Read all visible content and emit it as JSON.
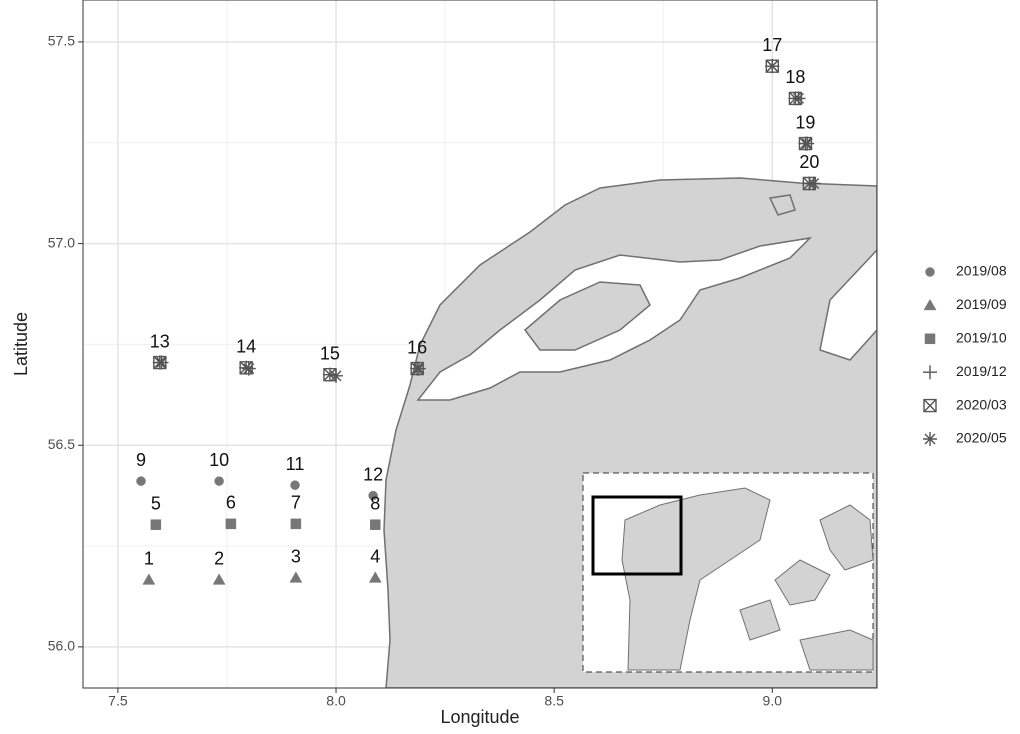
{
  "chart_data": {
    "type": "scatter",
    "x_label": "Longitude",
    "y_label": "Latitude",
    "xlim": [
      7.42,
      9.24
    ],
    "ylim": [
      55.898,
      57.604
    ],
    "xticks": [
      {
        "value": 7.5,
        "label": "7.5"
      },
      {
        "value": 8.0,
        "label": "8.0"
      },
      {
        "value": 8.5,
        "label": "8.5"
      },
      {
        "value": 9.0,
        "label": "9.0"
      }
    ],
    "yticks": [
      {
        "value": 56.0,
        "label": "56.0"
      },
      {
        "value": 56.5,
        "label": "56.5"
      },
      {
        "value": 57.0,
        "label": "57.0"
      },
      {
        "value": 57.5,
        "label": "57.5"
      }
    ],
    "grid": true,
    "legend": "right",
    "series": [
      {
        "name": "2019/08",
        "shape": "circle",
        "color": "#777777",
        "x": [
          7.553,
          7.732,
          7.906,
          8.085
        ],
        "values": [
          56.411,
          56.411,
          56.401,
          56.375
        ],
        "labels": [
          "9",
          "10",
          "11",
          "12"
        ]
      },
      {
        "name": "2019/09",
        "shape": "triangle",
        "color": "#777777",
        "x": [
          7.571,
          7.732,
          7.908,
          8.09
        ],
        "values": [
          56.166,
          56.166,
          56.171,
          56.171
        ],
        "labels": [
          "1",
          "2",
          "3",
          "4"
        ]
      },
      {
        "name": "2019/10",
        "shape": "square",
        "color": "#777777",
        "x": [
          7.587,
          7.759,
          7.908,
          8.09
        ],
        "values": [
          56.303,
          56.305,
          56.305,
          56.303
        ],
        "labels": [
          "5",
          "6",
          "7",
          "8"
        ]
      },
      {
        "name": "2019/12",
        "shape": "plus",
        "color": "#555555",
        "x": [
          7.596,
          7.794,
          7.986,
          8.186,
          9.0,
          9.053,
          9.076,
          9.085
        ],
        "values": [
          56.705,
          56.692,
          56.675,
          56.69,
          57.44,
          57.36,
          57.248,
          57.149
        ],
        "labels": [
          "13",
          "14",
          "15",
          "16",
          "17",
          "18",
          "19",
          "20"
        ]
      },
      {
        "name": "2020/03",
        "shape": "boxx",
        "color": "#555555",
        "x": [
          7.596,
          7.794,
          7.986,
          8.186,
          9.0,
          9.053,
          9.076,
          9.085
        ],
        "values": [
          56.705,
          56.692,
          56.675,
          56.69,
          57.44,
          57.36,
          57.248,
          57.149
        ]
      },
      {
        "name": "2020/05",
        "shape": "asterisk",
        "color": "#555555",
        "x": [
          7.6,
          7.8,
          8.0,
          8.19,
          9.0,
          9.06,
          9.08,
          9.095
        ],
        "values": [
          56.705,
          56.69,
          56.672,
          56.69,
          57.44,
          57.36,
          57.248,
          57.149
        ]
      }
    ]
  }
}
